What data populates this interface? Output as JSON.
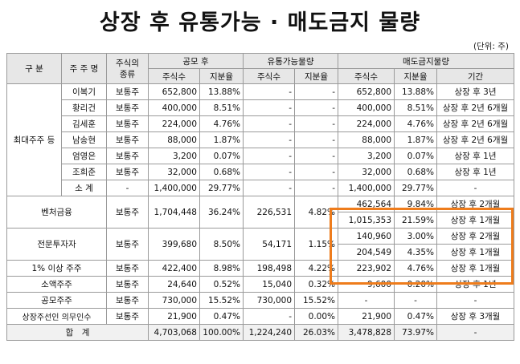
{
  "title": "상장 후 유통가능 · 매도금지 물량",
  "unit": "(단위: 주)",
  "header": {
    "category": "구 분",
    "shareholder": "주 주 명",
    "stock_type": "주식의\n종류",
    "public_after": "공모 후",
    "tradable": "유통가능물량",
    "lockup": "매도금지물량",
    "shares": "주식수",
    "ratio": "지분율",
    "period": "기간"
  },
  "groups": {
    "major": "최대주주 등",
    "venture": "벤처금융",
    "professional": "전문투자자",
    "over1pct": "1% 이상 주주",
    "minority": "소액주주",
    "ipo": "공모주주",
    "underwriter": "상장주선인 의무인수",
    "total": "합　계"
  },
  "major_rows": [
    {
      "name": "이복기",
      "type": "보통주",
      "p_shares": "652,800",
      "p_ratio": "13.88%",
      "t_shares": "-",
      "t_ratio": "-",
      "l_shares": "652,800",
      "l_ratio": "13.88%",
      "period": "상장 후 3년"
    },
    {
      "name": "황리건",
      "type": "보통주",
      "p_shares": "400,000",
      "p_ratio": "8.51%",
      "t_shares": "-",
      "t_ratio": "-",
      "l_shares": "400,000",
      "l_ratio": "8.51%",
      "period": "상장 후 2년 6개월"
    },
    {
      "name": "김세훈",
      "type": "보통주",
      "p_shares": "224,000",
      "p_ratio": "4.76%",
      "t_shares": "-",
      "t_ratio": "-",
      "l_shares": "224,000",
      "l_ratio": "4.76%",
      "period": "상장 후 2년 6개월"
    },
    {
      "name": "남송현",
      "type": "보통주",
      "p_shares": "88,000",
      "p_ratio": "1.87%",
      "t_shares": "-",
      "t_ratio": "-",
      "l_shares": "88,000",
      "l_ratio": "1.87%",
      "period": "상장 후 2년 6개월"
    },
    {
      "name": "엄영은",
      "type": "보통주",
      "p_shares": "3,200",
      "p_ratio": "0.07%",
      "t_shares": "-",
      "t_ratio": "-",
      "l_shares": "3,200",
      "l_ratio": "0.07%",
      "period": "상장 후 1년"
    },
    {
      "name": "조희준",
      "type": "보통주",
      "p_shares": "32,000",
      "p_ratio": "0.68%",
      "t_shares": "-",
      "t_ratio": "-",
      "l_shares": "32,000",
      "l_ratio": "0.68%",
      "period": "상장 후 1년"
    },
    {
      "name": "소 계",
      "type": "-",
      "p_shares": "1,400,000",
      "p_ratio": "29.77%",
      "t_shares": "-",
      "t_ratio": "-",
      "l_shares": "1,400,000",
      "l_ratio": "29.77%",
      "period": "-"
    }
  ],
  "venture": {
    "type": "보통주",
    "p_shares": "1,704,448",
    "p_ratio": "36.24%",
    "t_shares": "226,531",
    "t_ratio": "4.82%",
    "lock": [
      {
        "shares": "462,564",
        "ratio": "9.84%",
        "period": "상장 후 2개월"
      },
      {
        "shares": "1,015,353",
        "ratio": "21.59%",
        "period": "상장 후 1개월"
      }
    ]
  },
  "professional": {
    "type": "보통주",
    "p_shares": "399,680",
    "p_ratio": "8.50%",
    "t_shares": "54,171",
    "t_ratio": "1.15%",
    "lock": [
      {
        "shares": "140,960",
        "ratio": "3.00%",
        "period": "상장 후 2개월"
      },
      {
        "shares": "204,549",
        "ratio": "4.35%",
        "period": "상장 후 1개월"
      }
    ]
  },
  "over1pct": {
    "type": "보통주",
    "p_shares": "422,400",
    "p_ratio": "8.98%",
    "t_shares": "198,498",
    "t_ratio": "4.22%",
    "l_shares": "223,902",
    "l_ratio": "4.76%",
    "period": "상장 후 1개월"
  },
  "minority": {
    "type": "보통주",
    "p_shares": "24,640",
    "p_ratio": "0.52%",
    "t_shares": "15,040",
    "t_ratio": "0.32%",
    "l_shares": "9,600",
    "l_ratio": "0.20%",
    "period": "상장 후 1년"
  },
  "ipo": {
    "type": "보통주",
    "p_shares": "730,000",
    "p_ratio": "15.52%",
    "t_shares": "730,000",
    "t_ratio": "15.52%",
    "l_shares": "-",
    "l_ratio": "-",
    "period": "-"
  },
  "underwriter": {
    "type": "보통주",
    "p_shares": "21,900",
    "p_ratio": "0.47%",
    "t_shares": "-",
    "t_ratio": "0.00%",
    "l_shares": "21,900",
    "l_ratio": "0.47%",
    "period": "상장 후 3개월"
  },
  "total": {
    "p_shares": "4,703,068",
    "p_ratio": "100.00%",
    "t_shares": "1,224,240",
    "t_ratio": "26.03%",
    "l_shares": "3,478,828",
    "l_ratio": "73.97%",
    "period": "-"
  },
  "colors": {
    "highlight": "#ee7c1c",
    "header_bg": "#e7e7e7",
    "border": "#9a9a9a"
  }
}
